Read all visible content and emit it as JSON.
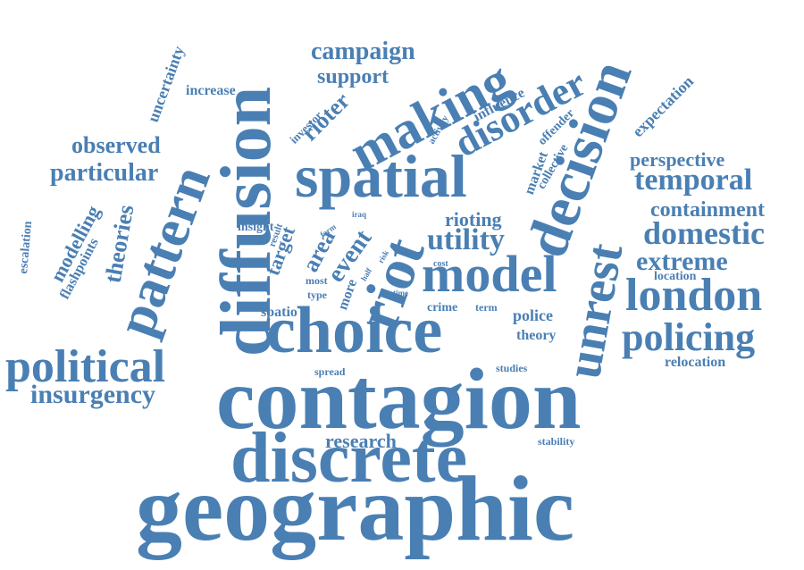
{
  "colors": {
    "word": "#4a7fb3",
    "background": "#ffffff"
  },
  "words": [
    "geographic",
    "contagion",
    "discrete",
    "choice",
    "diffusion",
    "spatial",
    "pattern",
    "riot",
    "decision",
    "model",
    "political",
    "making",
    "disorder",
    "london",
    "unrest",
    "policing",
    "insurgency",
    "temporal",
    "domestic",
    "utility",
    "extreme",
    "research",
    "campaign",
    "support",
    "perspective",
    "containment",
    "rioter",
    "particular",
    "observed",
    "theories",
    "modelling",
    "flashpoints",
    "escalation",
    "uncertainty",
    "increase",
    "investor",
    "influence",
    "offender",
    "expectation",
    "activity",
    "market",
    "collective",
    "rioting",
    "event",
    "area",
    "target",
    "result",
    "iraq",
    "insight",
    "form",
    "risk",
    "half",
    "cost",
    "time",
    "more",
    "most",
    "type",
    "spatio",
    "crime",
    "term",
    "police",
    "theory",
    "studies",
    "spread",
    "stability",
    "location",
    "relocation"
  ]
}
